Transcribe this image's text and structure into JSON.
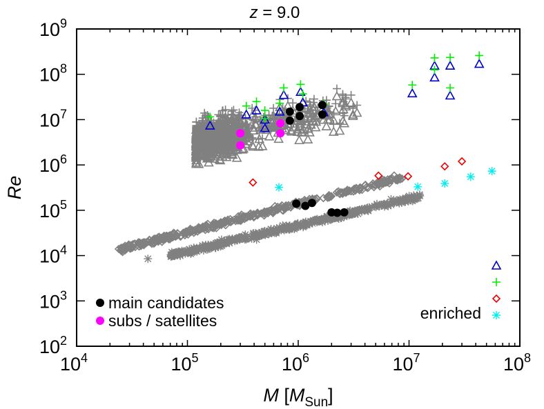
{
  "chart_data": {
    "type": "scatter",
    "title": "z = 9.0",
    "title_italic_part": "z",
    "title_rest": " = 9.0",
    "xlabel": "M [M_Sun]",
    "xlabel_parts": {
      "italic": "M",
      "open": " [",
      "italic2": "M",
      "sub": "Sun",
      "close": "]"
    },
    "ylabel": "Re",
    "xscale": "log",
    "yscale": "log",
    "xlim": [
      10000,
      100000000
    ],
    "ylim": [
      100,
      1000000000
    ],
    "x_ticks": [
      {
        "base": "10",
        "exp": "4",
        "value": 10000
      },
      {
        "base": "10",
        "exp": "5",
        "value": 100000
      },
      {
        "base": "10",
        "exp": "6",
        "value": 1000000
      },
      {
        "base": "10",
        "exp": "7",
        "value": 10000000
      },
      {
        "base": "10",
        "exp": "8",
        "value": 100000000
      }
    ],
    "y_ticks": [
      {
        "base": "10",
        "exp": "2",
        "value": 100
      },
      {
        "base": "10",
        "exp": "3",
        "value": 1000
      },
      {
        "base": "10",
        "exp": "4",
        "value": 10000
      },
      {
        "base": "10",
        "exp": "5",
        "value": 100000
      },
      {
        "base": "10",
        "exp": "6",
        "value": 1000000
      },
      {
        "base": "10",
        "exp": "7",
        "value": 10000000
      },
      {
        "base": "10",
        "exp": "8",
        "value": 100000000
      },
      {
        "base": "10",
        "exp": "9",
        "value": 1000000000
      }
    ],
    "grid": false,
    "colors": {
      "background_points": "#808080",
      "main_candidates": "#000000",
      "subs_satellites": "#ff00ff",
      "triangle_enriched": "#0000cc",
      "plus_enriched": "#00ee00",
      "diamond_enriched": "#ee0000",
      "star_enriched": "#00eeee"
    },
    "legend": {
      "left": {
        "placement": "bottom-left",
        "entries": [
          {
            "label": "main candidates",
            "marker": "filled-circle",
            "color": "#000000"
          },
          {
            "label": "subs / satellites",
            "marker": "filled-circle",
            "color": "#ff00ff"
          }
        ]
      },
      "right": {
        "placement": "bottom-right",
        "label": "enriched",
        "markers": [
          {
            "marker": "triangle",
            "color": "#0000cc"
          },
          {
            "marker": "plus",
            "color": "#00ee00"
          },
          {
            "marker": "diamond",
            "color": "#ee0000"
          },
          {
            "marker": "star",
            "color": "#00eeee"
          }
        ]
      }
    },
    "background_populations": [
      {
        "name": "upper-triangles-plus (gray)",
        "markers": [
          "triangle",
          "plus"
        ],
        "color": "#808080",
        "description": "dense cloud, M ~1.2e5 to 8e6, Re ~3e5 to 1e8",
        "x_range": [
          120000,
          8000000
        ],
        "y_range": [
          300000,
          100000000
        ]
      },
      {
        "name": "lower-diamonds (gray)",
        "markers": [
          "diamond"
        ],
        "color": "#808080",
        "description": "band following Re ~ M, M 2.4e4 to 9e6",
        "x_range": [
          24000,
          9000000
        ],
        "y_range": [
          11000,
          550000
        ]
      },
      {
        "name": "lower-stars (gray)",
        "markers": [
          "star"
        ],
        "color": "#808080",
        "description": "band below diamonds, M 4.4e4 to 1.3e7",
        "x_range": [
          44000,
          13000000
        ],
        "y_range": [
          8500,
          350000
        ]
      }
    ],
    "series": [
      {
        "name": "main candidates",
        "marker": "filled-circle",
        "color": "#000000",
        "points": [
          [
            840000,
            15000000
          ],
          [
            840000,
            9500000
          ],
          [
            1030000,
            19000000
          ],
          [
            1030000,
            12000000
          ],
          [
            1650000,
            21000000
          ],
          [
            1650000,
            13000000
          ],
          [
            960000,
            140000
          ],
          [
            1160000,
            125000
          ],
          [
            1330000,
            145000
          ],
          [
            2000000,
            90000
          ],
          [
            2250000,
            88000
          ],
          [
            2600000,
            90000
          ]
        ]
      },
      {
        "name": "subs / satellites",
        "marker": "filled-circle",
        "color": "#ff00ff",
        "points": [
          [
            300000,
            5000000
          ],
          [
            300000,
            2700000
          ],
          [
            690000,
            8300000
          ],
          [
            690000,
            5000000
          ]
        ]
      },
      {
        "name": "enriched triangles",
        "marker": "triangle",
        "color": "#0000cc",
        "points": [
          [
            160000,
            7400000
          ],
          [
            340000,
            13000000
          ],
          [
            420000,
            16000000
          ],
          [
            500000,
            10000000
          ],
          [
            500000,
            6500000
          ],
          [
            680000,
            15000000
          ],
          [
            740000,
            35000000
          ],
          [
            1050000,
            41000000
          ],
          [
            1100000,
            24000000
          ],
          [
            1700000,
            14500000
          ],
          [
            10700000,
            38000000
          ],
          [
            17000000,
            85000000
          ],
          [
            17000000,
            155000000
          ],
          [
            23500000,
            155000000
          ],
          [
            23500000,
            34000000
          ],
          [
            43000000,
            170000000
          ]
        ]
      },
      {
        "name": "enriched plus",
        "marker": "plus",
        "color": "#00ee00",
        "points": [
          [
            160000,
            11500000
          ],
          [
            340000,
            20000000
          ],
          [
            420000,
            25000000
          ],
          [
            500000,
            16000000
          ],
          [
            500000,
            10500000
          ],
          [
            680000,
            23000000
          ],
          [
            740000,
            50000000
          ],
          [
            1050000,
            60000000
          ],
          [
            1100000,
            37000000
          ],
          [
            1700000,
            22000000
          ],
          [
            10700000,
            58000000
          ],
          [
            17000000,
            125000000
          ],
          [
            17000000,
            230000000
          ],
          [
            23500000,
            235000000
          ],
          [
            23500000,
            50000000
          ],
          [
            43000000,
            260000000
          ]
        ]
      },
      {
        "name": "enriched diamonds",
        "marker": "diamond",
        "color": "#ee0000",
        "points": [
          [
            390000,
            410000
          ],
          [
            5300000,
            580000
          ],
          [
            9800000,
            560000
          ],
          [
            21000000,
            930000
          ],
          [
            30000000,
            1200000
          ]
        ]
      },
      {
        "name": "enriched stars",
        "marker": "star",
        "color": "#00eeee",
        "points": [
          [
            670000,
            320000
          ],
          [
            12000000,
            330000
          ],
          [
            21000000,
            390000
          ],
          [
            36000000,
            550000
          ],
          [
            56000000,
            730000
          ]
        ]
      }
    ]
  }
}
